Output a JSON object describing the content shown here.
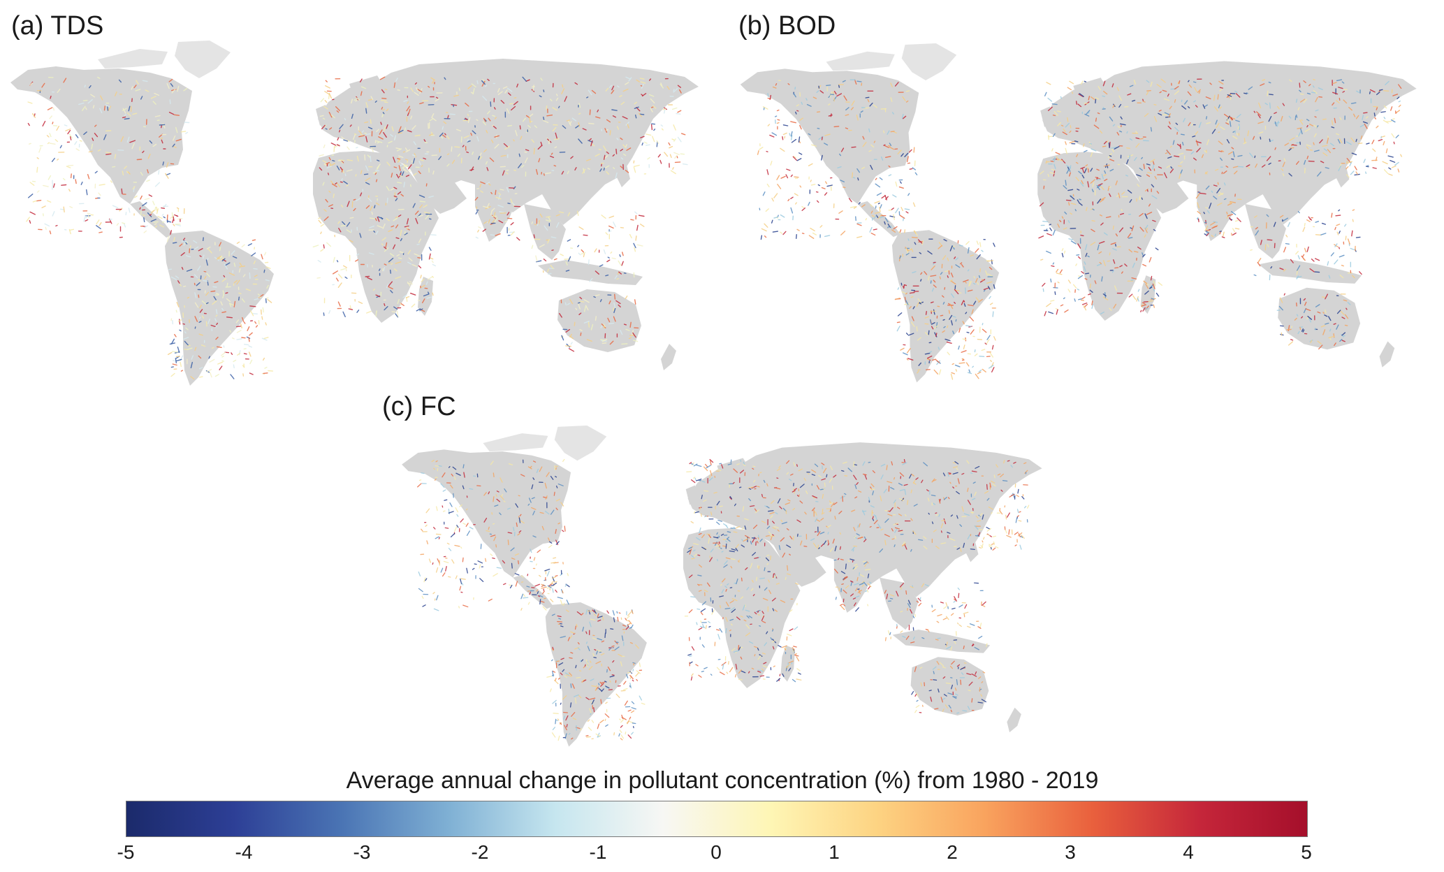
{
  "panels": [
    {
      "id": "a",
      "label": "(a) TDS",
      "palette": [
        "#f4f0c8",
        "#eef2c0",
        "#f6e9a8",
        "#d6eaf0",
        "#f5cf86",
        "#e86a44",
        "#c2283a",
        "#3a5fa6"
      ]
    },
    {
      "id": "b",
      "label": "(b) BOD",
      "palette": [
        "#f6e9a8",
        "#f5cf86",
        "#f4a462",
        "#e86a44",
        "#c2283a",
        "#9ccbe0",
        "#5a8ec2",
        "#27408e"
      ]
    },
    {
      "id": "c",
      "label": "(c) FC",
      "palette": [
        "#f6e9a8",
        "#f5cf86",
        "#f4a462",
        "#e86a44",
        "#c2283a",
        "#9ccbe0",
        "#5a8ec2",
        "#27408e"
      ]
    }
  ],
  "colorbar": {
    "title": "Average annual change in pollutant concentration (%) from 1980 - 2019",
    "min": -5,
    "max": 5,
    "ticks": [
      "-5",
      "-4",
      "-3",
      "-2",
      "-1",
      "0",
      "1",
      "2",
      "3",
      "4",
      "5"
    ],
    "colors": [
      "#1b2a6b",
      "#2d3f96",
      "#4a74b4",
      "#7fb0d4",
      "#c6e6ef",
      "#f7f7f4",
      "#fef6b5",
      "#fdd382",
      "#f9a35e",
      "#e9603d",
      "#c5263a",
      "#a50f2b"
    ]
  },
  "style": {
    "land": "#d4d4d4",
    "arctic": "#e4e4e4"
  }
}
